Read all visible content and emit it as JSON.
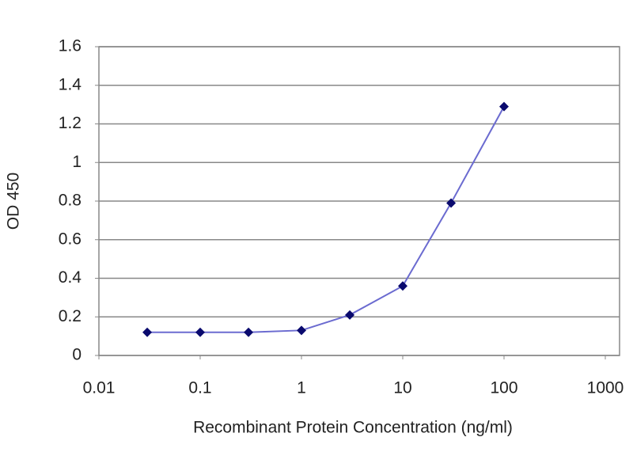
{
  "chart_data": {
    "type": "line",
    "xscale": "log",
    "x_label": "Recombinant Protein Concentration (ng/ml)",
    "y_label": "OD 450",
    "x": [
      0.03,
      0.1,
      0.3,
      1,
      3,
      10,
      30,
      100
    ],
    "series": [
      {
        "color": "#6b6bd0",
        "marker_color": "#0a0a6e",
        "values": [
          0.12,
          0.12,
          0.12,
          0.13,
          0.21,
          0.36,
          0.79,
          1.29
        ]
      }
    ],
    "xlim": [
      0.01,
      1000
    ],
    "xticks": [
      0.01,
      0.1,
      1,
      10,
      100,
      1000
    ],
    "ylim": [
      0,
      1.6
    ],
    "yticks": [
      0,
      0.2,
      0.4,
      0.6,
      0.8,
      1,
      1.2,
      1.4,
      1.6
    ],
    "grid": true
  }
}
